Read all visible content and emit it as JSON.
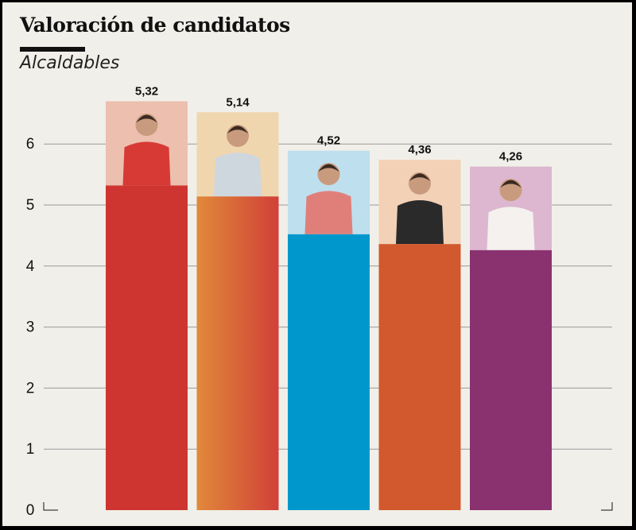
{
  "header": {
    "title": "Valoración de candidatos",
    "subtitle": "Alcaldables"
  },
  "chart_data": {
    "type": "bar",
    "title": "Valoración de candidatos",
    "subtitle": "Alcaldables",
    "categories": [
      "",
      "",
      "",
      "",
      ""
    ],
    "values": [
      5.32,
      5.14,
      4.52,
      4.36,
      4.26
    ],
    "value_labels": [
      "5,32",
      "5,14",
      "4,52",
      "4,36",
      "4,26"
    ],
    "ylim": [
      0,
      6.7
    ],
    "yticks": [
      0,
      1,
      2,
      3,
      4,
      5,
      6
    ],
    "ytick_labels": [
      "0",
      "1",
      "2",
      "3",
      "4",
      "5",
      "6"
    ],
    "photo_top_values": [
      6.7,
      6.52,
      5.89,
      5.74,
      5.63
    ],
    "grid": true,
    "xlabel": "",
    "ylabel": "",
    "legend": "none",
    "colors": {
      "bars": [
        "#cf3530",
        "#e0893a",
        "#0098cc",
        "#d2582e",
        "#8a316f"
      ],
      "bar_gradient_end": [
        "#cf3530",
        "#d14038",
        "#0098cc",
        "#d2582e",
        "#8a316f"
      ],
      "photo_backgrounds": [
        "#ecbfae",
        "#f0d6ae",
        "#bedfee",
        "#f3d1b6",
        "#dcb7cf"
      ],
      "grid": "#9a9a9a",
      "background": "#f1efe9",
      "text": "#111111"
    },
    "photo_icons": [
      "candidate-photo-icon",
      "candidate-photo-icon",
      "candidate-photo-icon",
      "candidate-photo-icon",
      "candidate-photo-icon"
    ]
  }
}
